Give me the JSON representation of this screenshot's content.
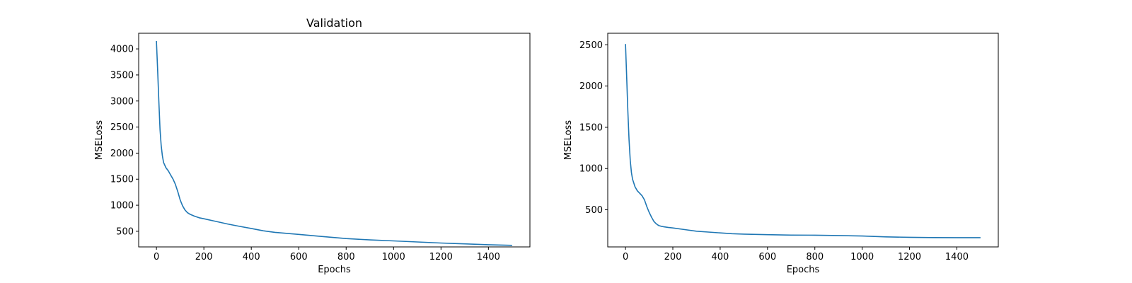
{
  "chart_data": [
    {
      "type": "line",
      "title": "Validation",
      "xlabel": "Epochs",
      "ylabel": "MSELoss",
      "xlim": [
        -75,
        1575
      ],
      "ylim": [
        200,
        4300
      ],
      "xticks": [
        0,
        200,
        400,
        600,
        800,
        1000,
        1200,
        1400
      ],
      "yticks": [
        500,
        1000,
        1500,
        2000,
        2500,
        3000,
        3500,
        4000
      ],
      "grid": false,
      "color": "#1f77b4",
      "series": [
        {
          "x": [
            0,
            5,
            10,
            15,
            20,
            25,
            30,
            40,
            50,
            60,
            70,
            80,
            90,
            100,
            110,
            120,
            130,
            140,
            160,
            180,
            200,
            250,
            300,
            350,
            400,
            450,
            500,
            600,
            700,
            800,
            900,
            1000,
            1100,
            1200,
            1300,
            1400,
            1500
          ],
          "y": [
            4150,
            3600,
            3000,
            2450,
            2150,
            1950,
            1820,
            1720,
            1660,
            1580,
            1500,
            1400,
            1260,
            1100,
            990,
            910,
            860,
            830,
            790,
            760,
            740,
            690,
            640,
            595,
            555,
            510,
            480,
            440,
            400,
            360,
            335,
            315,
            295,
            275,
            258,
            242,
            230
          ]
        }
      ]
    },
    {
      "type": "line",
      "title": "",
      "xlabel": "Epochs",
      "ylabel": "MSELoss",
      "xlim": [
        -75,
        1575
      ],
      "ylim": [
        50,
        2640
      ],
      "xticks": [
        0,
        200,
        400,
        600,
        800,
        1000,
        1200,
        1400
      ],
      "yticks": [
        500,
        1000,
        1500,
        2000,
        2500
      ],
      "grid": false,
      "color": "#1f77b4",
      "series": [
        {
          "x": [
            0,
            5,
            10,
            15,
            20,
            25,
            30,
            40,
            50,
            60,
            70,
            80,
            90,
            100,
            110,
            120,
            130,
            140,
            150,
            160,
            180,
            200,
            250,
            300,
            350,
            400,
            450,
            500,
            600,
            700,
            800,
            900,
            1000,
            1100,
            1200,
            1300,
            1400,
            1500
          ],
          "y": [
            2510,
            2100,
            1700,
            1350,
            1100,
            950,
            870,
            780,
            730,
            700,
            670,
            620,
            540,
            470,
            410,
            360,
            330,
            310,
            300,
            295,
            287,
            280,
            260,
            240,
            230,
            220,
            210,
            205,
            198,
            193,
            192,
            188,
            182,
            172,
            167,
            163,
            162,
            162
          ]
        }
      ]
    }
  ]
}
